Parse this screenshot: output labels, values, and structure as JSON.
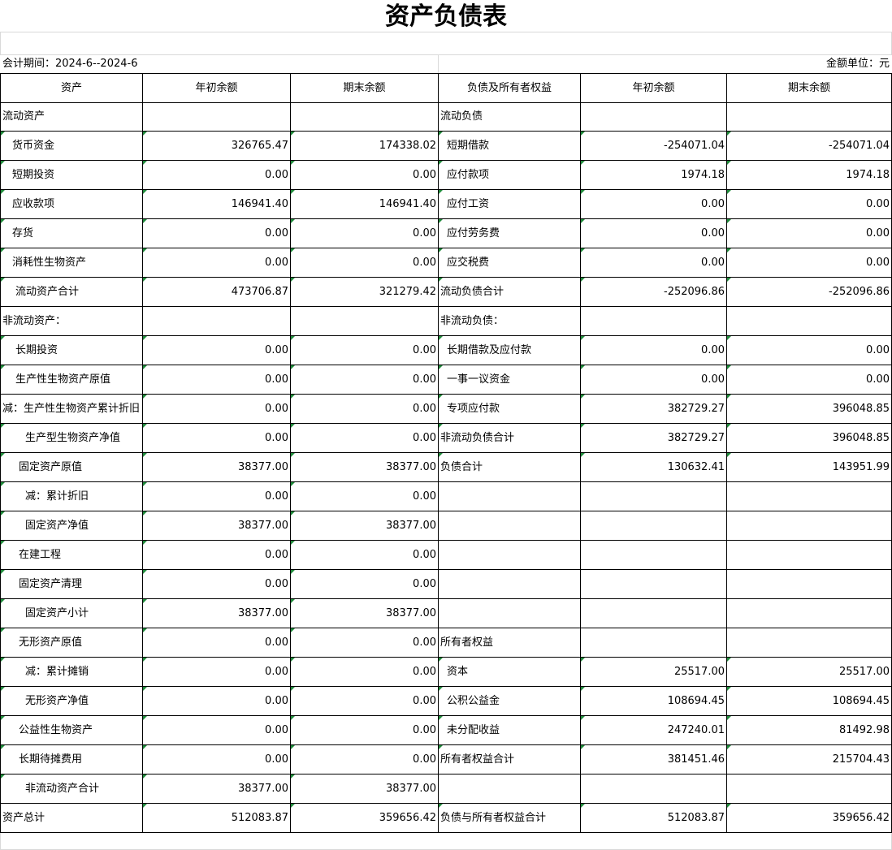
{
  "header": {
    "title": "资产负债表",
    "period": "会计期间：2024-6--2024-6",
    "unit": "金额单位：元"
  },
  "table": {
    "columns": [
      "资产",
      "年初余额",
      "期末余额",
      "负债及所有者权益",
      "年初余额",
      "期末余额"
    ],
    "rows": [
      [
        "流动资产",
        null,
        null,
        "流动负债",
        null,
        null
      ],
      [
        "货币资金",
        "326765.47",
        "174338.02",
        "短期借款",
        "-254071.04",
        "-254071.04"
      ],
      [
        "短期投资",
        "0.00",
        "0.00",
        "应付款项",
        "1974.18",
        "1974.18"
      ],
      [
        "应收款项",
        "146941.40",
        "146941.40",
        "应付工资",
        "0.00",
        "0.00"
      ],
      [
        "存货",
        "0.00",
        "0.00",
        "应付劳务费",
        "0.00",
        "0.00"
      ],
      [
        "消耗性生物资产",
        "0.00",
        "0.00",
        "应交税费",
        "0.00",
        "0.00"
      ],
      [
        "流动资产合计",
        "473706.87",
        "321279.42",
        "流动负债合计",
        "-252096.86",
        "-252096.86"
      ],
      [
        "非流动资产：",
        null,
        null,
        "非流动负债：",
        null,
        null
      ],
      [
        "长期投资",
        "0.00",
        "0.00",
        "长期借款及应付款",
        "0.00",
        "0.00"
      ],
      [
        "生产性生物资产原值",
        "0.00",
        "0.00",
        "一事一议资金",
        "0.00",
        "0.00"
      ],
      [
        "减：生产性生物资产累计折旧",
        "0.00",
        "0.00",
        "专项应付款",
        "382729.27",
        "396048.85"
      ],
      [
        "生产型生物资产净值",
        "0.00",
        "0.00",
        "非流动负债合计",
        "382729.27",
        "396048.85"
      ],
      [
        "固定资产原值",
        "38377.00",
        "38377.00",
        "负债合计",
        "130632.41",
        "143951.99"
      ],
      [
        "减：累计折旧",
        "0.00",
        "0.00",
        null,
        null,
        null
      ],
      [
        "固定资产净值",
        "38377.00",
        "38377.00",
        null,
        null,
        null
      ],
      [
        "在建工程",
        "0.00",
        "0.00",
        null,
        null,
        null
      ],
      [
        "固定资产清理",
        "0.00",
        "0.00",
        null,
        null,
        null
      ],
      [
        "固定资产小计",
        "38377.00",
        "38377.00",
        null,
        null,
        null
      ],
      [
        "无形资产原值",
        "0.00",
        "0.00",
        "所有者权益",
        null,
        null
      ],
      [
        "减：累计摊销",
        "0.00",
        "0.00",
        "资本",
        "25517.00",
        "25517.00"
      ],
      [
        "无形资产净值",
        "0.00",
        "0.00",
        "公积公益金",
        "108694.45",
        "108694.45"
      ],
      [
        "公益性生物资产",
        "0.00",
        "0.00",
        "未分配收益",
        "247240.01",
        "81492.98"
      ],
      [
        "长期待摊费用",
        "0.00",
        "0.00",
        "所有者权益合计",
        "381451.46",
        "215704.43"
      ],
      [
        "非流动资产合计",
        "38377.00",
        "38377.00",
        null,
        null,
        null
      ],
      [
        "资产总计",
        "512083.87",
        "359656.42",
        "负债与所有者权益合计",
        "512083.87",
        "359656.42"
      ]
    ]
  }
}
